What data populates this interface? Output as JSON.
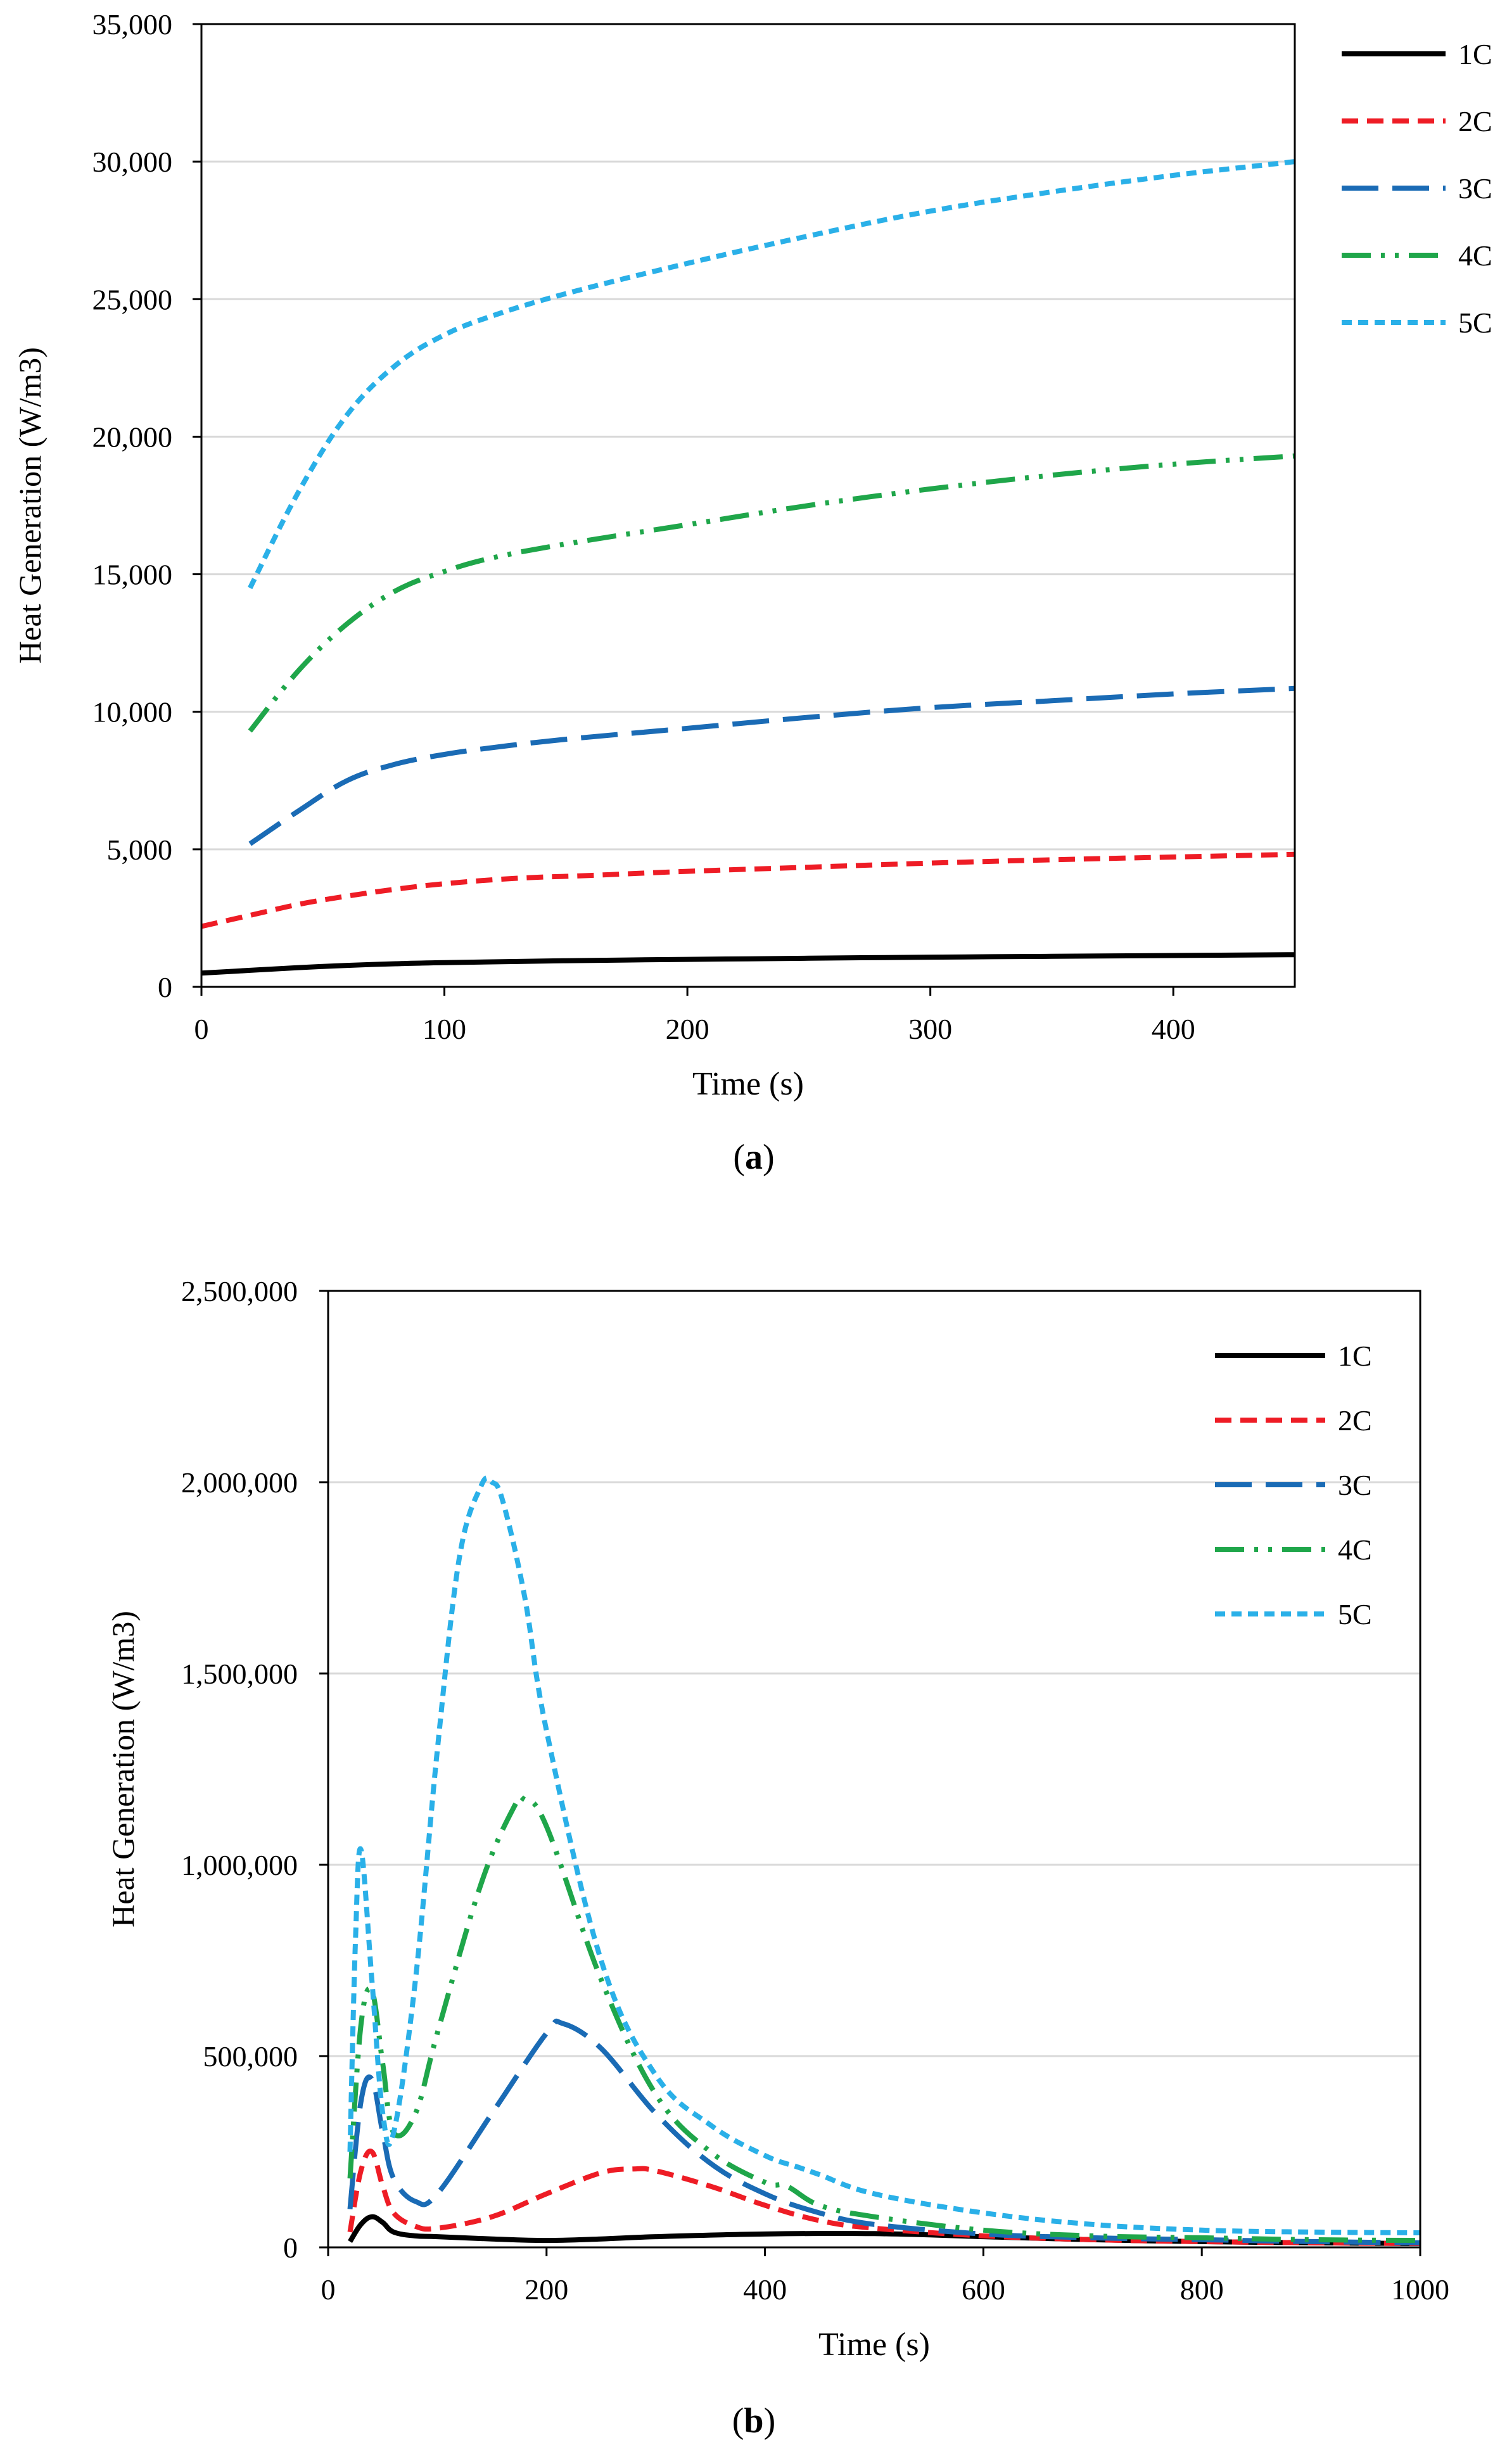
{
  "colors": {
    "1C": "#000000",
    "2C": "#ee1c25",
    "3C": "#1a6bb5",
    "4C": "#1fa64a",
    "5C": "#2ab0e8",
    "grid": "#d9d9d9",
    "axis": "#000000"
  },
  "chart_data": [
    {
      "type": "line",
      "panel_label": "(a)",
      "panel_label_letter": "a",
      "title": "",
      "xlabel": "Time (s)",
      "ylabel": "Heat Generation (W/m3)",
      "xlim": [
        0,
        450
      ],
      "ylim": [
        0,
        35000
      ],
      "xticks": [
        0,
        100,
        200,
        300,
        400
      ],
      "yticks": [
        0,
        5000,
        10000,
        15000,
        20000,
        25000,
        30000,
        35000
      ],
      "xtick_labels": [
        "0",
        "100",
        "200",
        "300",
        "400"
      ],
      "ytick_labels": [
        "0",
        "5,000",
        "10,000",
        "15,000",
        "20,000",
        "25,000",
        "30,000",
        "35,000"
      ],
      "grid": "horizontal",
      "legend_position": "outside-right",
      "series": [
        {
          "name": "1C",
          "style": "solid",
          "x": [
            0,
            20,
            40,
            60,
            80,
            100,
            150,
            200,
            250,
            300,
            350,
            400,
            450
          ],
          "y": [
            500,
            600,
            700,
            780,
            840,
            880,
            950,
            1000,
            1040,
            1080,
            1110,
            1140,
            1170
          ]
        },
        {
          "name": "2C",
          "style": "dash",
          "x": [
            0,
            20,
            40,
            60,
            80,
            100,
            130,
            160,
            200,
            250,
            300,
            350,
            400,
            450
          ],
          "y": [
            2200,
            2600,
            3000,
            3300,
            3550,
            3750,
            3950,
            4050,
            4200,
            4350,
            4500,
            4620,
            4720,
            4820
          ]
        },
        {
          "name": "3C",
          "style": "longdash",
          "x": [
            20,
            40,
            60,
            80,
            100,
            120,
            150,
            200,
            250,
            300,
            350,
            400,
            450
          ],
          "y": [
            5200,
            6400,
            7500,
            8100,
            8450,
            8700,
            9000,
            9400,
            9800,
            10150,
            10400,
            10650,
            10850
          ]
        },
        {
          "name": "4C",
          "style": "dashdotdot",
          "x": [
            20,
            40,
            60,
            80,
            100,
            120,
            150,
            200,
            250,
            300,
            350,
            400,
            450
          ],
          "y": [
            9300,
            11500,
            13200,
            14400,
            15100,
            15600,
            16100,
            16800,
            17500,
            18100,
            18600,
            19000,
            19300
          ]
        },
        {
          "name": "5C",
          "style": "shortdash",
          "x": [
            20,
            40,
            60,
            80,
            100,
            120,
            150,
            200,
            250,
            300,
            350,
            400,
            450
          ],
          "y": [
            14500,
            18000,
            20800,
            22600,
            23700,
            24400,
            25200,
            26300,
            27300,
            28200,
            28900,
            29500,
            30000
          ]
        }
      ]
    },
    {
      "type": "line",
      "panel_label": "(b)",
      "panel_label_letter": "b",
      "title": "",
      "xlabel": "Time (s)",
      "ylabel": "Heat Generation (W/m3)",
      "xlim": [
        0,
        1000
      ],
      "ylim": [
        0,
        2500000
      ],
      "xticks": [
        0,
        200,
        400,
        600,
        800,
        1000
      ],
      "yticks": [
        0,
        500000,
        1000000,
        1500000,
        2000000,
        2500000
      ],
      "xtick_labels": [
        "0",
        "200",
        "400",
        "600",
        "800",
        "1000"
      ],
      "ytick_labels": [
        "0",
        "500,000",
        "1,000,000",
        "1,500,000",
        "2,000,000",
        "2,500,000"
      ],
      "grid": "horizontal",
      "legend_position": "top-right",
      "series": [
        {
          "name": "1C",
          "style": "solid",
          "x": [
            20,
            30,
            40,
            50,
            60,
            80,
            100,
            150,
            200,
            250,
            300,
            400,
            500,
            600,
            700,
            800,
            900,
            1000
          ],
          "y": [
            15000,
            60000,
            80000,
            65000,
            40000,
            30000,
            28000,
            22000,
            18000,
            22000,
            28000,
            35000,
            36000,
            28000,
            20000,
            15000,
            12000,
            10000
          ]
        },
        {
          "name": "2C",
          "style": "dash",
          "x": [
            20,
            30,
            40,
            50,
            60,
            80,
            100,
            150,
            200,
            250,
            280,
            300,
            350,
            400,
            450,
            500,
            600,
            700,
            800,
            900,
            1000
          ],
          "y": [
            40000,
            200000,
            250000,
            160000,
            90000,
            55000,
            50000,
            80000,
            140000,
            195000,
            205000,
            200000,
            160000,
            110000,
            70000,
            50000,
            30000,
            20000,
            15000,
            12000,
            10000
          ]
        },
        {
          "name": "3C",
          "style": "longdash",
          "x": [
            20,
            30,
            40,
            50,
            60,
            80,
            100,
            150,
            200,
            215,
            250,
            300,
            350,
            400,
            450,
            500,
            600,
            700,
            800,
            900,
            1000
          ],
          "y": [
            100000,
            380000,
            440000,
            300000,
            180000,
            120000,
            140000,
            350000,
            560000,
            585000,
            520000,
            350000,
            220000,
            140000,
            90000,
            60000,
            35000,
            25000,
            20000,
            15000,
            12000
          ]
        },
        {
          "name": "4C",
          "style": "dashdotdot",
          "x": [
            20,
            30,
            40,
            50,
            60,
            80,
            100,
            140,
            170,
            180,
            200,
            250,
            300,
            350,
            400,
            420,
            450,
            500,
            600,
            700,
            800,
            900,
            1000
          ],
          "y": [
            180000,
            580000,
            670000,
            480000,
            300000,
            350000,
            560000,
            950000,
            1150000,
            1170000,
            1100000,
            700000,
            400000,
            250000,
            170000,
            160000,
            110000,
            80000,
            45000,
            30000,
            25000,
            20000,
            18000
          ]
        },
        {
          "name": "5C",
          "style": "shortdash",
          "x": [
            20,
            25,
            30,
            40,
            50,
            60,
            80,
            100,
            120,
            140,
            150,
            160,
            180,
            200,
            250,
            300,
            350,
            400,
            430,
            450,
            500,
            600,
            700,
            800,
            900,
            1000
          ],
          "y": [
            250000,
            800000,
            1040000,
            700000,
            350000,
            300000,
            700000,
            1300000,
            1800000,
            1990000,
            2000000,
            1950000,
            1700000,
            1350000,
            750000,
            450000,
            320000,
            240000,
            210000,
            190000,
            140000,
            90000,
            60000,
            45000,
            40000,
            38000
          ]
        }
      ]
    }
  ]
}
